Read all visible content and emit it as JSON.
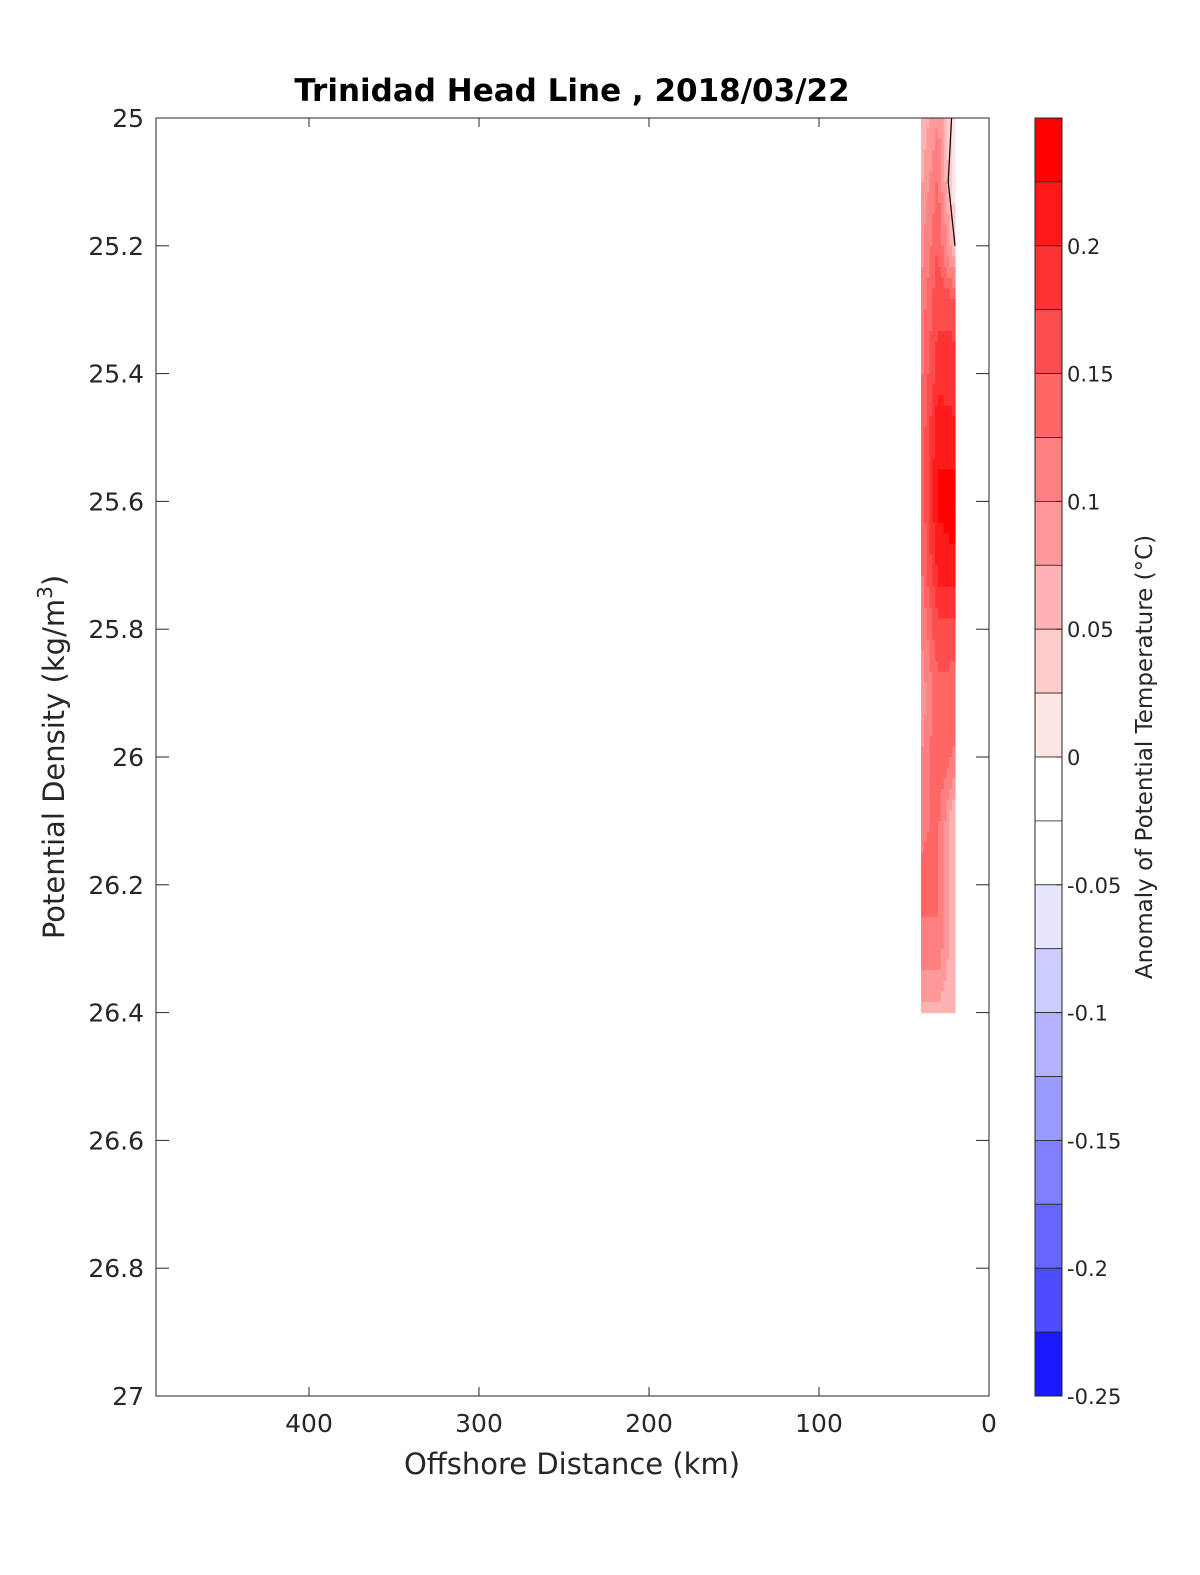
{
  "chart_data": {
    "type": "heatmap",
    "title": "Trinidad Head Line , 2018/03/22",
    "xlabel": "Offshore Distance (km)",
    "ylabel_main": "Potential Density (kg/m",
    "ylabel_sup": "3",
    "ylabel_close": ")",
    "colorbar_label": "Anomaly of Potential Temperature (°C)",
    "xlim": [
      490,
      0
    ],
    "x_reversed": true,
    "ylim": [
      25,
      27
    ],
    "y_reversed": true,
    "x_ticks": [
      400,
      300,
      200,
      100,
      0
    ],
    "x_tick_labels": [
      "400",
      "300",
      "200",
      "100",
      "0"
    ],
    "y_ticks": [
      25,
      25.2,
      25.4,
      25.6,
      25.8,
      26,
      26.2,
      26.4,
      26.6,
      26.8,
      27
    ],
    "y_tick_labels": [
      "25",
      "25.2",
      "25.4",
      "25.6",
      "25.8",
      "26",
      "26.2",
      "26.4",
      "26.6",
      "26.8",
      "27"
    ],
    "colorbar_range": [
      -0.25,
      0.25
    ],
    "colorbar_ticks": [
      0.2,
      0.15,
      0.1,
      0.05,
      0,
      -0.05,
      -0.1,
      -0.15,
      -0.2,
      -0.25
    ],
    "colorbar_tick_labels": [
      "0.2",
      "0.15",
      "0.1",
      "0.05",
      "0",
      "-0.05",
      "-0.1",
      "-0.15",
      "-0.2",
      "-0.25"
    ],
    "colorbar_levels": [
      {
        "from": 0.225,
        "to": 0.25,
        "color": "#ff0000"
      },
      {
        "from": 0.2,
        "to": 0.225,
        "color": "#ff1a1a"
      },
      {
        "from": 0.175,
        "to": 0.2,
        "color": "#ff3333"
      },
      {
        "from": 0.15,
        "to": 0.175,
        "color": "#ff4d4d"
      },
      {
        "from": 0.125,
        "to": 0.15,
        "color": "#ff6666"
      },
      {
        "from": 0.1,
        "to": 0.125,
        "color": "#ff8080"
      },
      {
        "from": 0.075,
        "to": 0.1,
        "color": "#ff9999"
      },
      {
        "from": 0.05,
        "to": 0.075,
        "color": "#ffb3b3"
      },
      {
        "from": 0.025,
        "to": 0.05,
        "color": "#ffcccc"
      },
      {
        "from": 0.0,
        "to": 0.025,
        "color": "#ffe6e6"
      },
      {
        "from": -0.025,
        "to": 0.0,
        "color": "#ffffff"
      },
      {
        "from": -0.05,
        "to": -0.025,
        "color": "#ffffff"
      },
      {
        "from": -0.075,
        "to": -0.05,
        "color": "#e6e6ff"
      },
      {
        "from": -0.1,
        "to": -0.075,
        "color": "#ccccff"
      },
      {
        "from": -0.125,
        "to": -0.1,
        "color": "#b3b3ff"
      },
      {
        "from": -0.15,
        "to": -0.125,
        "color": "#9999ff"
      },
      {
        "from": -0.175,
        "to": -0.15,
        "color": "#8080ff"
      },
      {
        "from": -0.2,
        "to": -0.175,
        "color": "#6666ff"
      },
      {
        "from": -0.225,
        "to": -0.2,
        "color": "#4d4dff"
      },
      {
        "from": -0.25,
        "to": -0.225,
        "color": "#1a1aff"
      }
    ],
    "anomaly_field": {
      "x": [
        40,
        30,
        20
      ],
      "y": [
        25.0,
        25.1,
        25.2,
        25.3,
        25.4,
        25.5,
        25.6,
        25.7,
        25.8,
        25.9,
        26.0,
        26.1,
        26.2,
        26.3,
        26.4
      ],
      "values": [
        [
          0.05,
          0.1,
          0.0
        ],
        [
          0.07,
          0.13,
          0.0
        ],
        [
          0.09,
          0.15,
          0.05
        ],
        [
          0.11,
          0.17,
          0.17
        ],
        [
          0.12,
          0.19,
          0.18
        ],
        [
          0.13,
          0.22,
          0.21
        ],
        [
          0.13,
          0.23,
          0.24
        ],
        [
          0.12,
          0.21,
          0.22
        ],
        [
          0.1,
          0.17,
          0.16
        ],
        [
          0.08,
          0.14,
          0.14
        ],
        [
          0.1,
          0.15,
          0.12
        ],
        [
          0.12,
          0.13,
          0.05
        ],
        [
          0.13,
          0.13,
          0.05
        ],
        [
          0.12,
          0.12,
          0.05
        ],
        [
          0.06,
          0.07,
          0.05
        ]
      ]
    },
    "zero_contour": {
      "x": [
        22,
        24,
        20
      ],
      "y": [
        25.0,
        25.1,
        25.2
      ]
    }
  }
}
